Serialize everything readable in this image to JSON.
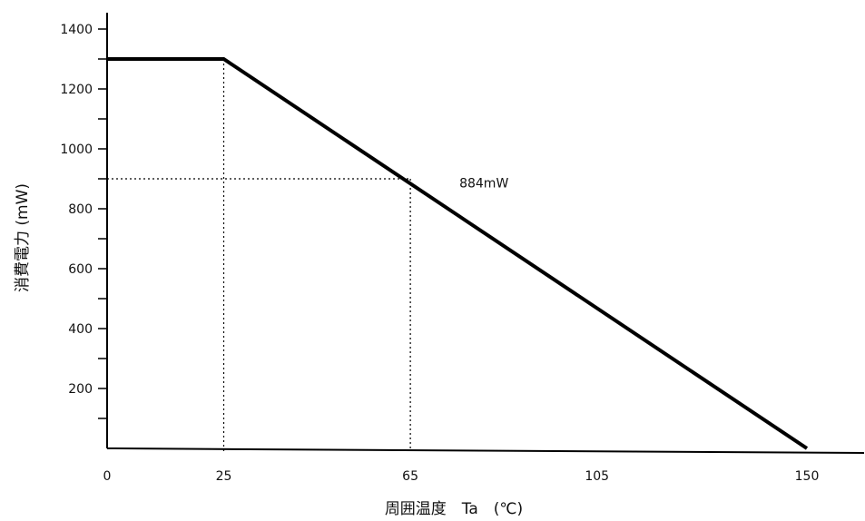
{
  "chart_data": {
    "type": "line",
    "title": "",
    "xlabel": "周囲温度　Ta　(℃)",
    "ylabel": "消費電力 (mW)",
    "xlim": [
      0,
      150
    ],
    "ylim": [
      0,
      1400
    ],
    "x_ticks": [
      0,
      25,
      65,
      105,
      150
    ],
    "y_ticks": [
      200,
      400,
      600,
      800,
      1000,
      1200,
      1400
    ],
    "y_minor_step": 100,
    "x": [
      0,
      25,
      150
    ],
    "series": [
      {
        "values": [
          1300,
          1300,
          0
        ]
      }
    ],
    "reference_lines": [
      {
        "x": 25,
        "y": 1300
      },
      {
        "x": 65,
        "y": 900
      }
    ],
    "annotations": [
      {
        "text": "884mW",
        "x": 72,
        "y": 884
      }
    ],
    "grid": false,
    "colors": {
      "line": "#000000",
      "axis": "#000000",
      "reference": "#000000"
    }
  }
}
